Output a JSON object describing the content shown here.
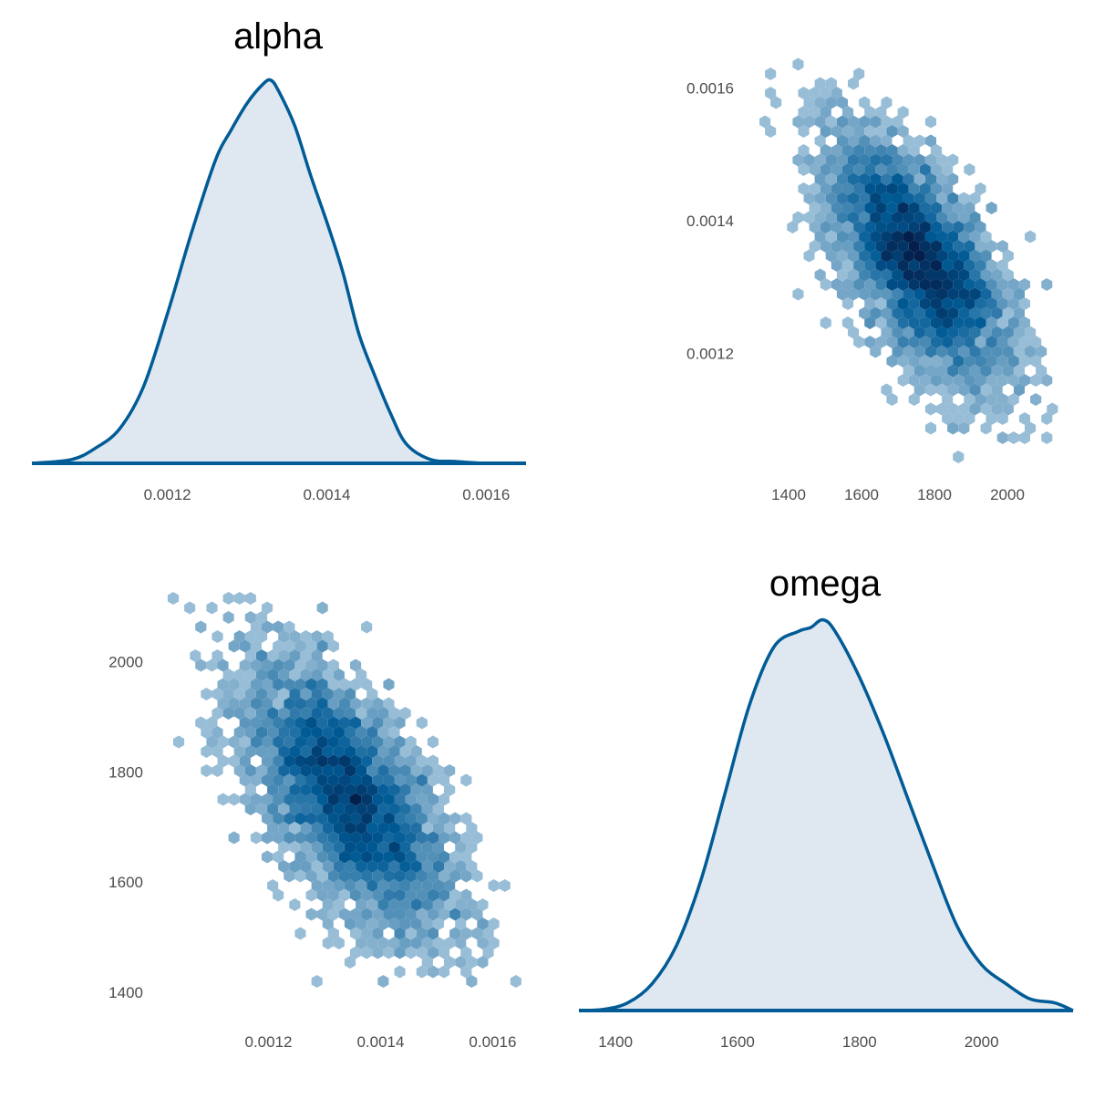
{
  "colors": {
    "line": "#005b96",
    "fill": "#dfe8f0",
    "hex_low": "#c9dcea",
    "hex_high": "#041f4c"
  },
  "chart_data": [
    {
      "type": "area",
      "panel": "top-left",
      "title": "alpha",
      "xlabel": "",
      "ylabel": "",
      "xlim": [
        0.00103,
        0.00165
      ],
      "x_ticks": [
        "0.0012",
        "0.0014",
        "0.0016"
      ],
      "x": [
        0.00103,
        0.00108,
        0.00111,
        0.00114,
        0.00117,
        0.0012,
        0.00123,
        0.00126,
        0.00128,
        0.0013,
        0.00132,
        0.00133,
        0.00134,
        0.00136,
        0.00138,
        0.0014,
        0.00142,
        0.00144,
        0.00146,
        0.00148,
        0.0015,
        0.00153,
        0.00156,
        0.0016,
        0.00165
      ],
      "density": [
        0.0,
        0.01,
        0.04,
        0.09,
        0.2,
        0.39,
        0.6,
        0.79,
        0.87,
        0.94,
        0.99,
        1.0,
        0.97,
        0.88,
        0.75,
        0.63,
        0.5,
        0.34,
        0.23,
        0.13,
        0.05,
        0.01,
        0.005,
        0.0,
        0.0
      ]
    },
    {
      "type": "heatmap",
      "subtype": "hexbin",
      "panel": "top-right",
      "xlabel": "",
      "ylabel": "",
      "xlim": [
        1320,
        2150
      ],
      "ylim": [
        0.001045,
        0.00165
      ],
      "x_ticks": [
        "1400",
        "1600",
        "1800",
        "2000"
      ],
      "y_ticks": [
        "0.0012",
        "0.0014",
        "0.0016"
      ],
      "series": [
        {
          "x_var": "omega",
          "y_var": "alpha"
        }
      ]
    },
    {
      "type": "heatmap",
      "subtype": "hexbin",
      "panel": "bottom-left",
      "xlabel": "",
      "ylabel": "",
      "xlim": [
        0.00103,
        0.00164
      ],
      "ylim": [
        1380,
        2150
      ],
      "x_ticks": [
        "0.0012",
        "0.0014",
        "0.0016"
      ],
      "y_ticks": [
        "1400",
        "1600",
        "1800",
        "2000"
      ],
      "series": [
        {
          "x_var": "alpha",
          "y_var": "omega"
        }
      ]
    },
    {
      "type": "area",
      "panel": "bottom-right",
      "title": "omega",
      "xlabel": "",
      "ylabel": "",
      "xlim": [
        1340,
        2150
      ],
      "x_ticks": [
        "1400",
        "1600",
        "1800",
        "2000"
      ],
      "x": [
        1340,
        1380,
        1420,
        1460,
        1500,
        1540,
        1580,
        1620,
        1660,
        1700,
        1720,
        1740,
        1760,
        1800,
        1840,
        1880,
        1920,
        1960,
        2000,
        2040,
        2080,
        2120,
        2150
      ],
      "density": [
        0.0,
        0.003,
        0.02,
        0.07,
        0.17,
        0.34,
        0.57,
        0.8,
        0.95,
        0.99,
        1.0,
        1.02,
        0.99,
        0.87,
        0.72,
        0.55,
        0.38,
        0.22,
        0.12,
        0.07,
        0.03,
        0.02,
        0.0
      ]
    }
  ]
}
